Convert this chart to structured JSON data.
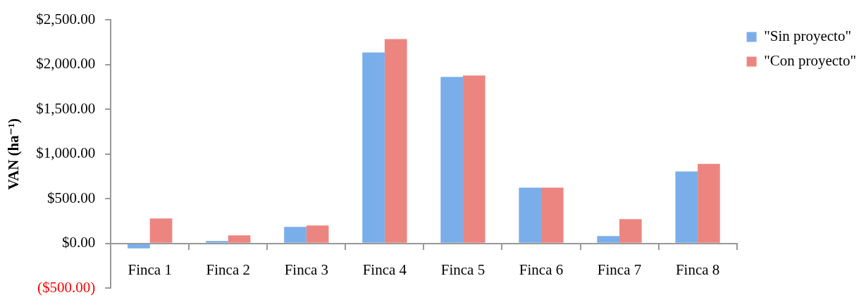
{
  "chart_data": {
    "type": "bar",
    "ylabel": "VAN (ha⁻¹)",
    "categories": [
      "Finca 1",
      "Finca 2",
      "Finca 3",
      "Finca 4",
      "Finca 5",
      "Finca 6",
      "Finca 7",
      "Finca 8"
    ],
    "series": [
      {
        "name": "\"Sin proyecto\"",
        "color": "#7aaeea",
        "values": [
          -55,
          29,
          185,
          2134,
          1860,
          624,
          84,
          804
        ]
      },
      {
        "name": "\"Con proyecto\"",
        "color": "#ec8580",
        "values": [
          280,
          92,
          201,
          2283,
          1876,
          624,
          272,
          890
        ]
      }
    ],
    "ylim": [
      -500,
      2500
    ],
    "yticks": [
      {
        "value": -500,
        "label": "($500.00)"
      },
      {
        "value": 0,
        "label": "$0.00"
      },
      {
        "value": 500,
        "label": "$500.00"
      },
      {
        "value": 1000,
        "label": "$1,000.00"
      },
      {
        "value": 1500,
        "label": "$1,500.00"
      },
      {
        "value": 2000,
        "label": "$2,000.00"
      },
      {
        "value": 2500,
        "label": "$2,500.00"
      }
    ],
    "grid": false,
    "legend": "top right"
  }
}
